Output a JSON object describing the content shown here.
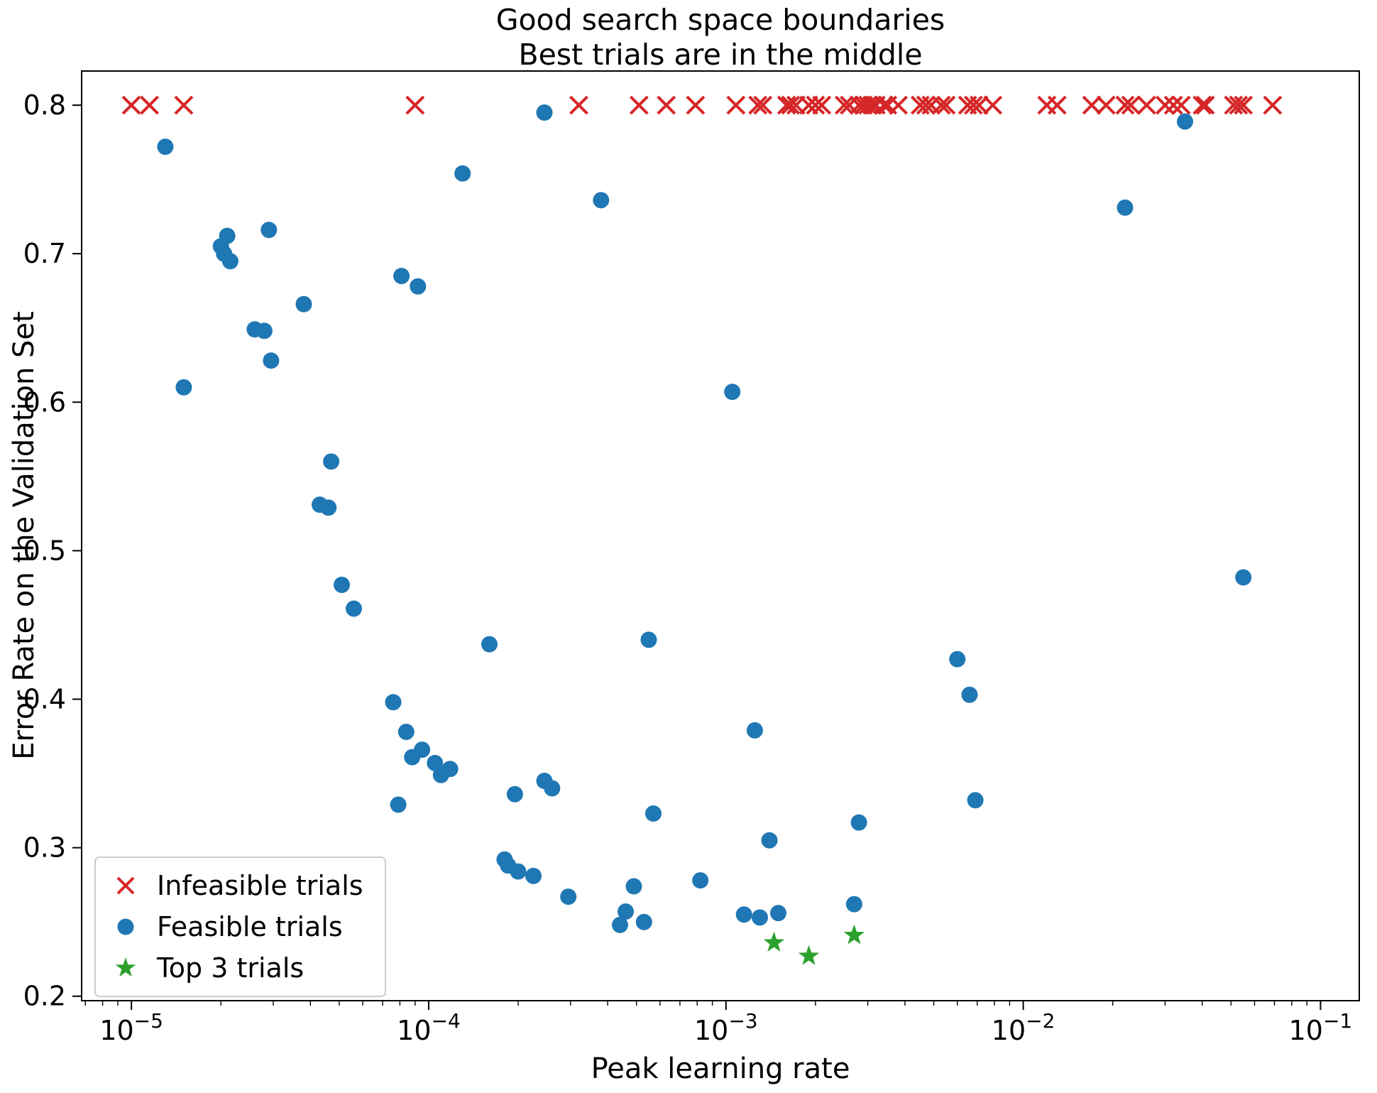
{
  "chart_data": {
    "type": "scatter",
    "title": "Good search space boundaries\nBest trials are in the middle",
    "title_line1": "Good search space boundaries",
    "title_line2": "Best trials are in the middle",
    "xlabel": "Peak learning rate",
    "ylabel": "Error Rate on the Validation Set",
    "xscale": "log",
    "yscale": "linear",
    "xlim": [
      6.8e-06,
      0.135
    ],
    "ylim": [
      0.197,
      0.823
    ],
    "grid": false,
    "legend_position": "lower left",
    "xticks": [
      {
        "value": 1e-05,
        "base": "10",
        "exp": "−5"
      },
      {
        "value": 0.0001,
        "base": "10",
        "exp": "−4"
      },
      {
        "value": 0.001,
        "base": "10",
        "exp": "−3"
      },
      {
        "value": 0.01,
        "base": "10",
        "exp": "−2"
      },
      {
        "value": 0.1,
        "base": "10",
        "exp": "−1"
      }
    ],
    "yticks": [
      {
        "value": 0.2,
        "label": "0.2"
      },
      {
        "value": 0.3,
        "label": "0.3"
      },
      {
        "value": 0.4,
        "label": "0.4"
      },
      {
        "value": 0.5,
        "label": "0.5"
      },
      {
        "value": 0.6,
        "label": "0.6"
      },
      {
        "value": 0.7,
        "label": "0.7"
      },
      {
        "value": 0.8,
        "label": "0.8"
      }
    ],
    "series": [
      {
        "name": "Infeasible trials",
        "marker": "x",
        "color": "#d62728",
        "points": [
          [
            1e-05,
            0.8
          ],
          [
            1.15e-05,
            0.8
          ],
          [
            1.5e-05,
            0.8
          ],
          [
            9e-05,
            0.8
          ],
          [
            0.00032,
            0.8
          ],
          [
            0.00051,
            0.8
          ],
          [
            0.00063,
            0.8
          ],
          [
            0.00079,
            0.8
          ],
          [
            0.00108,
            0.8
          ],
          [
            0.00128,
            0.8
          ],
          [
            0.00133,
            0.8
          ],
          [
            0.0016,
            0.8
          ],
          [
            0.00165,
            0.8
          ],
          [
            0.00172,
            0.8
          ],
          [
            0.0019,
            0.8
          ],
          [
            0.002,
            0.8
          ],
          [
            0.0021,
            0.8
          ],
          [
            0.0025,
            0.8
          ],
          [
            0.0026,
            0.8
          ],
          [
            0.0028,
            0.8
          ],
          [
            0.0029,
            0.8
          ],
          [
            0.003,
            0.8
          ],
          [
            0.0031,
            0.8
          ],
          [
            0.0032,
            0.8
          ],
          [
            0.0034,
            0.8
          ],
          [
            0.0035,
            0.8
          ],
          [
            0.0038,
            0.8
          ],
          [
            0.0045,
            0.8
          ],
          [
            0.0047,
            0.8
          ],
          [
            0.0049,
            0.8
          ],
          [
            0.0053,
            0.8
          ],
          [
            0.0055,
            0.8
          ],
          [
            0.0065,
            0.8
          ],
          [
            0.0068,
            0.8
          ],
          [
            0.0071,
            0.8
          ],
          [
            0.0079,
            0.8
          ],
          [
            0.012,
            0.8
          ],
          [
            0.013,
            0.8
          ],
          [
            0.017,
            0.8
          ],
          [
            0.019,
            0.8
          ],
          [
            0.022,
            0.8
          ],
          [
            0.023,
            0.8
          ],
          [
            0.026,
            0.8
          ],
          [
            0.03,
            0.8
          ],
          [
            0.032,
            0.8
          ],
          [
            0.034,
            0.8
          ],
          [
            0.04,
            0.8
          ],
          [
            0.041,
            0.8
          ],
          [
            0.051,
            0.8
          ],
          [
            0.053,
            0.8
          ],
          [
            0.055,
            0.8
          ],
          [
            0.069,
            0.8
          ]
        ]
      },
      {
        "name": "Feasible trials",
        "marker": "o",
        "color": "#1f77b4",
        "points": [
          [
            1.3e-05,
            0.772
          ],
          [
            1.5e-05,
            0.61
          ],
          [
            2e-05,
            0.705
          ],
          [
            2.05e-05,
            0.7
          ],
          [
            2.1e-05,
            0.712
          ],
          [
            2.15e-05,
            0.695
          ],
          [
            2.6e-05,
            0.649
          ],
          [
            2.8e-05,
            0.648
          ],
          [
            2.9e-05,
            0.716
          ],
          [
            2.95e-05,
            0.628
          ],
          [
            3.8e-05,
            0.666
          ],
          [
            4.3e-05,
            0.531
          ],
          [
            4.6e-05,
            0.529
          ],
          [
            4.7e-05,
            0.56
          ],
          [
            5.1e-05,
            0.477
          ],
          [
            5.6e-05,
            0.461
          ],
          [
            7.6e-05,
            0.398
          ],
          [
            7.9e-05,
            0.329
          ],
          [
            8.1e-05,
            0.685
          ],
          [
            8.4e-05,
            0.378
          ],
          [
            8.8e-05,
            0.361
          ],
          [
            9.2e-05,
            0.678
          ],
          [
            9.5e-05,
            0.366
          ],
          [
            0.000105,
            0.357
          ],
          [
            0.00011,
            0.349
          ],
          [
            0.000118,
            0.353
          ],
          [
            0.00013,
            0.754
          ],
          [
            0.00016,
            0.437
          ],
          [
            0.00018,
            0.292
          ],
          [
            0.000185,
            0.288
          ],
          [
            0.000195,
            0.336
          ],
          [
            0.0002,
            0.284
          ],
          [
            0.000225,
            0.281
          ],
          [
            0.000245,
            0.345
          ],
          [
            0.000245,
            0.795
          ],
          [
            0.00026,
            0.34
          ],
          [
            0.000295,
            0.267
          ],
          [
            0.00038,
            0.736
          ],
          [
            0.00044,
            0.248
          ],
          [
            0.00046,
            0.257
          ],
          [
            0.00049,
            0.274
          ],
          [
            0.00053,
            0.25
          ],
          [
            0.00055,
            0.44
          ],
          [
            0.00057,
            0.323
          ],
          [
            0.00082,
            0.278
          ],
          [
            0.00105,
            0.607
          ],
          [
            0.00115,
            0.255
          ],
          [
            0.00125,
            0.379
          ],
          [
            0.0013,
            0.253
          ],
          [
            0.0014,
            0.305
          ],
          [
            0.0015,
            0.256
          ],
          [
            0.0027,
            0.262
          ],
          [
            0.0028,
            0.317
          ],
          [
            0.006,
            0.427
          ],
          [
            0.0066,
            0.403
          ],
          [
            0.0069,
            0.332
          ],
          [
            0.022,
            0.731
          ],
          [
            0.035,
            0.789
          ],
          [
            0.055,
            0.482
          ]
        ]
      },
      {
        "name": "Top 3 trials",
        "marker": "star",
        "color": "#2ca02c",
        "points": [
          [
            0.00145,
            0.236
          ],
          [
            0.0019,
            0.227
          ],
          [
            0.0027,
            0.241
          ]
        ]
      }
    ]
  }
}
